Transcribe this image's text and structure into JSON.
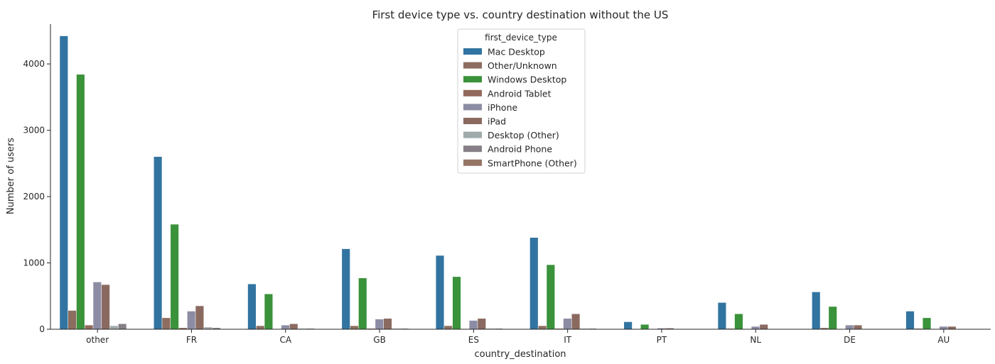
{
  "chart_data": {
    "type": "bar",
    "title": "First device type vs. country destination without the US",
    "xlabel": "country_destination",
    "ylabel": "Number of users",
    "ylim": [
      0,
      4600
    ],
    "yticks": [
      0,
      1000,
      2000,
      3000,
      4000
    ],
    "grid": false,
    "legend": {
      "title": "first_device_type",
      "placement": "top-center"
    },
    "categories": [
      "other",
      "FR",
      "CA",
      "GB",
      "ES",
      "IT",
      "PT",
      "NL",
      "DE",
      "AU"
    ],
    "series": [
      {
        "name": "Mac Desktop",
        "color": "#3274a1",
        "values": [
          4420,
          2600,
          680,
          1210,
          1110,
          1380,
          110,
          400,
          560,
          270
        ]
      },
      {
        "name": "Other/Unknown",
        "color": "#8c6d5f",
        "values": [
          280,
          170,
          50,
          50,
          50,
          50,
          5,
          10,
          20,
          10
        ]
      },
      {
        "name": "Windows Desktop",
        "color": "#3a923a",
        "values": [
          3840,
          1580,
          530,
          770,
          790,
          970,
          70,
          230,
          340,
          170
        ]
      },
      {
        "name": "Android Tablet",
        "color": "#926a5c",
        "values": [
          60,
          20,
          5,
          10,
          5,
          10,
          1,
          3,
          5,
          2
        ]
      },
      {
        "name": "iPhone",
        "color": "#8c8ca4",
        "values": [
          710,
          270,
          60,
          150,
          130,
          160,
          15,
          40,
          60,
          40
        ]
      },
      {
        "name": "iPad",
        "color": "#8a6a60",
        "values": [
          670,
          350,
          80,
          160,
          160,
          230,
          15,
          70,
          60,
          40
        ]
      },
      {
        "name": "Desktop (Other)",
        "color": "#a0aaaa",
        "values": [
          50,
          30,
          10,
          10,
          10,
          10,
          1,
          5,
          5,
          3
        ]
      },
      {
        "name": "Android Phone",
        "color": "#867f87",
        "values": [
          80,
          20,
          10,
          10,
          10,
          10,
          1,
          5,
          5,
          3
        ]
      },
      {
        "name": "SmartPhone (Other)",
        "color": "#967566",
        "values": [
          5,
          3,
          1,
          2,
          1,
          2,
          0,
          1,
          1,
          1
        ]
      }
    ]
  }
}
